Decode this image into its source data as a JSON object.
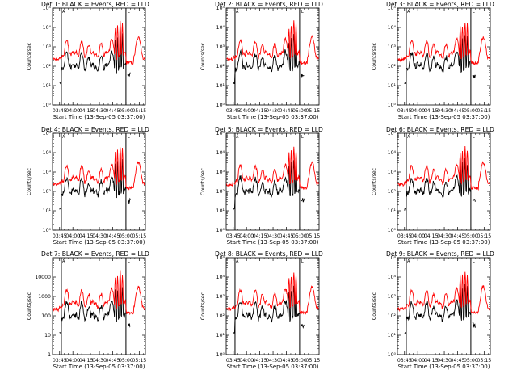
{
  "figure": {
    "x_ticks": [
      "03:45",
      "04:00",
      "04:15",
      "04:30",
      "04:45",
      "05:00",
      "05:15"
    ],
    "x_label": "Start Time (13-Sep-05 03:37:00)",
    "y_label": "Counts/sec",
    "y_ticks_exp": [
      "10⁰",
      "10¹",
      "10²",
      "10³",
      "10⁴",
      "10⁵"
    ],
    "y_ticks_plain": [
      "1",
      "10",
      "100",
      "1000",
      "10000"
    ],
    "marker_a": "A",
    "marker_l": "L",
    "colors": {
      "events": "#000000",
      "lld": "#ff0000"
    }
  },
  "chart_data": [
    {
      "type": "line",
      "panel": 1,
      "title": "Det 1: BLACK = Events, RED = LLD",
      "ytick_style": "exp"
    },
    {
      "type": "line",
      "panel": 2,
      "title": "Det 2: BLACK = Events, RED = LLD",
      "ytick_style": "exp"
    },
    {
      "type": "line",
      "panel": 3,
      "title": "Det 3: BLACK = Events, RED = LLD",
      "ytick_style": "exp"
    },
    {
      "type": "line",
      "panel": 4,
      "title": "Det 4: BLACK = Events, RED = LLD",
      "ytick_style": "exp"
    },
    {
      "type": "line",
      "panel": 5,
      "title": "Det 5: BLACK = Events, RED = LLD",
      "ytick_style": "exp"
    },
    {
      "type": "line",
      "panel": 6,
      "title": "Det 6: BLACK = Events, RED = LLD",
      "ytick_style": "exp"
    },
    {
      "type": "line",
      "panel": 7,
      "title": "Det 7: BLACK = Events, RED = LLD",
      "ytick_style": "plain"
    },
    {
      "type": "line",
      "panel": 8,
      "title": "Det 8: BLACK = Events, RED = LLD",
      "ytick_style": "exp"
    },
    {
      "type": "line",
      "panel": 9,
      "title": "Det 9: BLACK = Events, RED = LLD",
      "ytick_style": "exp"
    }
  ],
  "series_model": {
    "x_unit": "minutes after 03:37:00",
    "x_range": [
      0,
      105
    ],
    "y_scale": "log10",
    "y_range": [
      1,
      100000
    ],
    "vertical_lines_min": [
      10,
      83
    ],
    "lld_baseline": 250,
    "lld_dip": 150,
    "lld_end_bump": 3000,
    "events_start_min": 8,
    "events_stop_min": 88,
    "lld_bursts": [
      {
        "t": 16,
        "peak": 2200
      },
      {
        "t": 33,
        "peak": 2000
      },
      {
        "t": 41,
        "peak": 1300
      },
      {
        "t": 55,
        "peak": 1400
      },
      {
        "t": 67,
        "peak": 2500
      },
      {
        "t": 71,
        "peak": 10000
      },
      {
        "t": 73.5,
        "peak": 12000
      },
      {
        "t": 76.5,
        "peak": 20000
      },
      {
        "t": 79,
        "peak": 15000
      }
    ]
  }
}
